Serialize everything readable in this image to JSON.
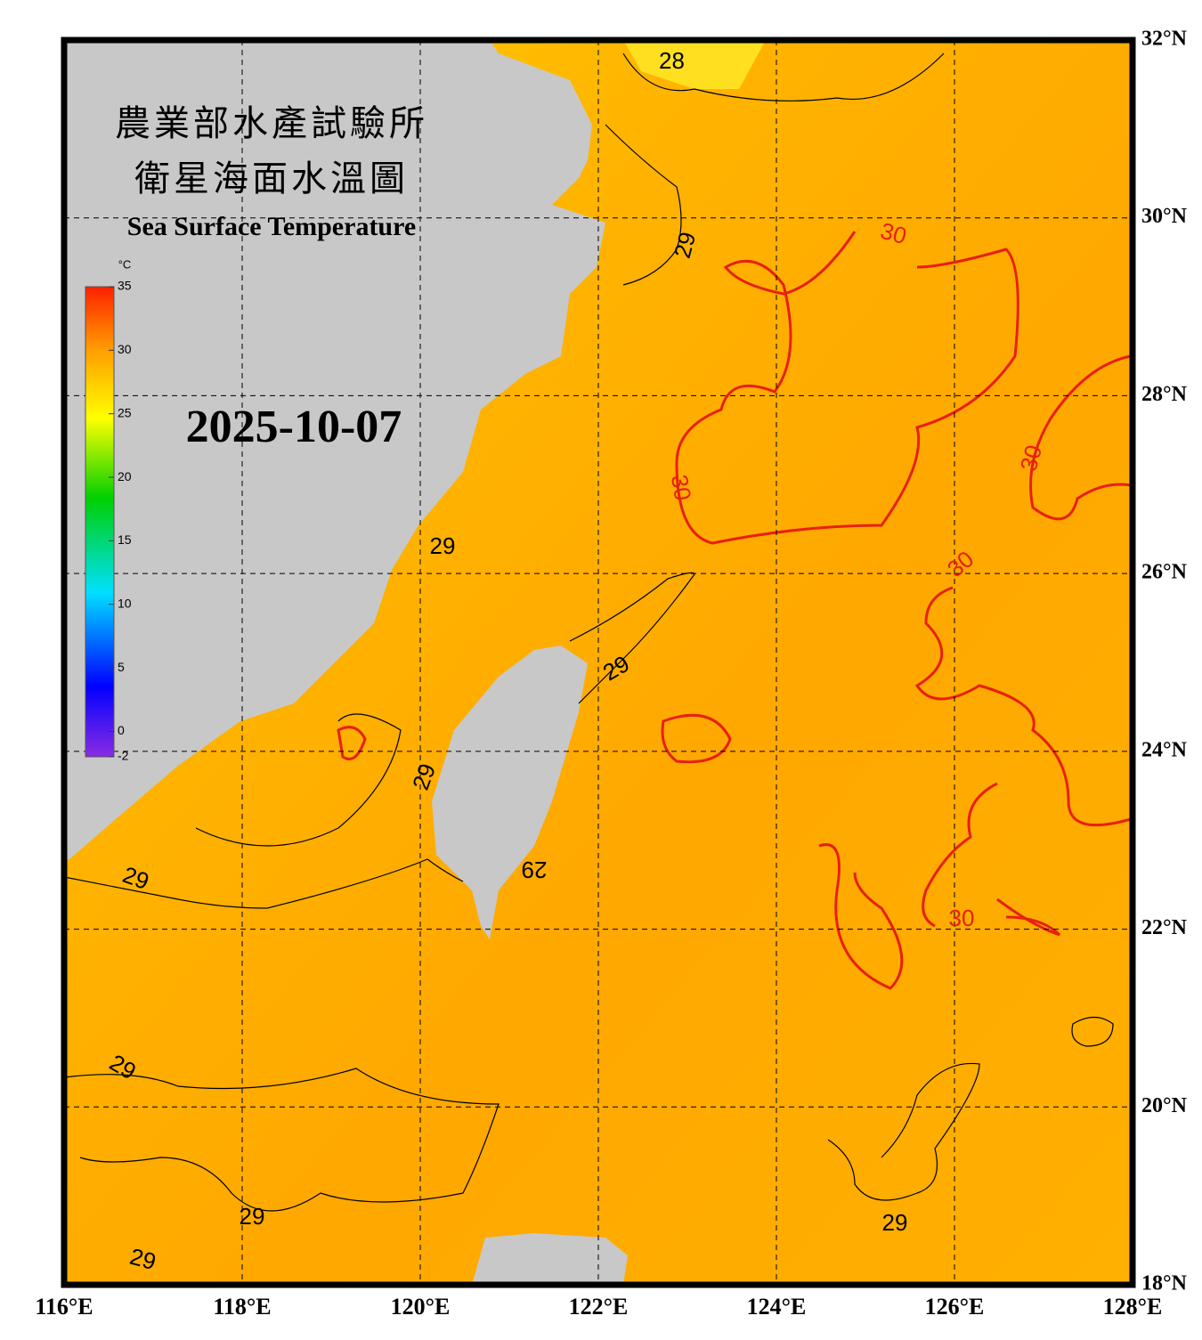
{
  "title_zh": "農業部水產試驗所",
  "subtitle_zh": "衛星海面水溫圖",
  "title_en": "Sea Surface Temperature",
  "date": "2025-10-07",
  "colorbar": {
    "unit": "°C",
    "ticks": [
      35,
      30,
      25,
      20,
      15,
      10,
      5,
      0,
      -2
    ]
  },
  "longitudes": [
    "116°E",
    "118°E",
    "120°E",
    "122°E",
    "124°E",
    "126°E",
    "128°E"
  ],
  "latitudes": [
    "32°N",
    "30°N",
    "28°N",
    "26°N",
    "24°N",
    "22°N",
    "20°N",
    "18°N"
  ],
  "contour_labels": [
    "28",
    "29",
    "29",
    "29",
    "29",
    "29",
    "29",
    "29",
    "29",
    "29",
    "29",
    "30",
    "30",
    "30",
    "30",
    "30"
  ]
}
